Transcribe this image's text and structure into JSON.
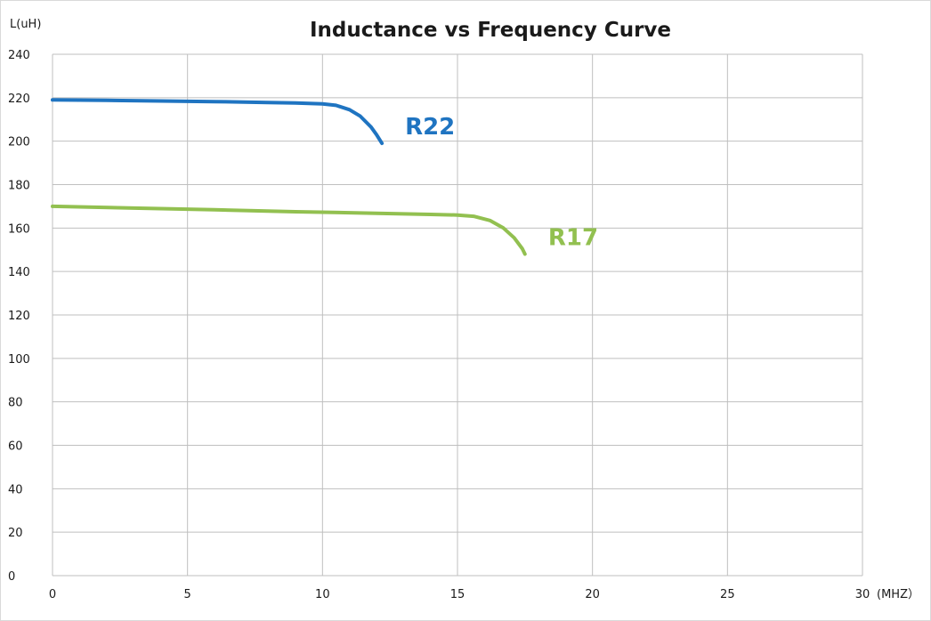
{
  "chart_data": {
    "type": "line",
    "title": "Inductance vs Frequency Curve",
    "xlabel": "(MHZ）",
    "ylabel": "L(uH)",
    "xlim": [
      0,
      30
    ],
    "ylim": [
      0,
      240
    ],
    "x_ticks": [
      0,
      5,
      10,
      15,
      20,
      25,
      30
    ],
    "y_ticks": [
      0,
      20,
      40,
      60,
      80,
      100,
      120,
      140,
      160,
      180,
      200,
      220,
      240
    ],
    "grid": true,
    "legend": "none",
    "series": [
      {
        "name": "R22",
        "color": "#1f74c1",
        "points": [
          [
            0,
            219
          ],
          [
            2,
            218.8
          ],
          [
            4,
            218.5
          ],
          [
            6,
            218.2
          ],
          [
            8,
            217.8
          ],
          [
            9,
            217.6
          ],
          [
            10,
            217.2
          ],
          [
            10.5,
            216.5
          ],
          [
            11,
            214.5
          ],
          [
            11.4,
            211.5
          ],
          [
            11.8,
            206.5
          ],
          [
            12.0,
            203
          ],
          [
            12.2,
            199
          ]
        ]
      },
      {
        "name": "R17",
        "color": "#92c050",
        "points": [
          [
            0,
            170
          ],
          [
            3,
            169.2
          ],
          [
            6,
            168.4
          ],
          [
            9,
            167.5
          ],
          [
            12,
            166.8
          ],
          [
            14,
            166.3
          ],
          [
            15,
            166
          ],
          [
            15.6,
            165.4
          ],
          [
            16.2,
            163.5
          ],
          [
            16.7,
            160
          ],
          [
            17.1,
            155.5
          ],
          [
            17.4,
            150.5
          ],
          [
            17.5,
            148
          ]
        ]
      }
    ]
  }
}
